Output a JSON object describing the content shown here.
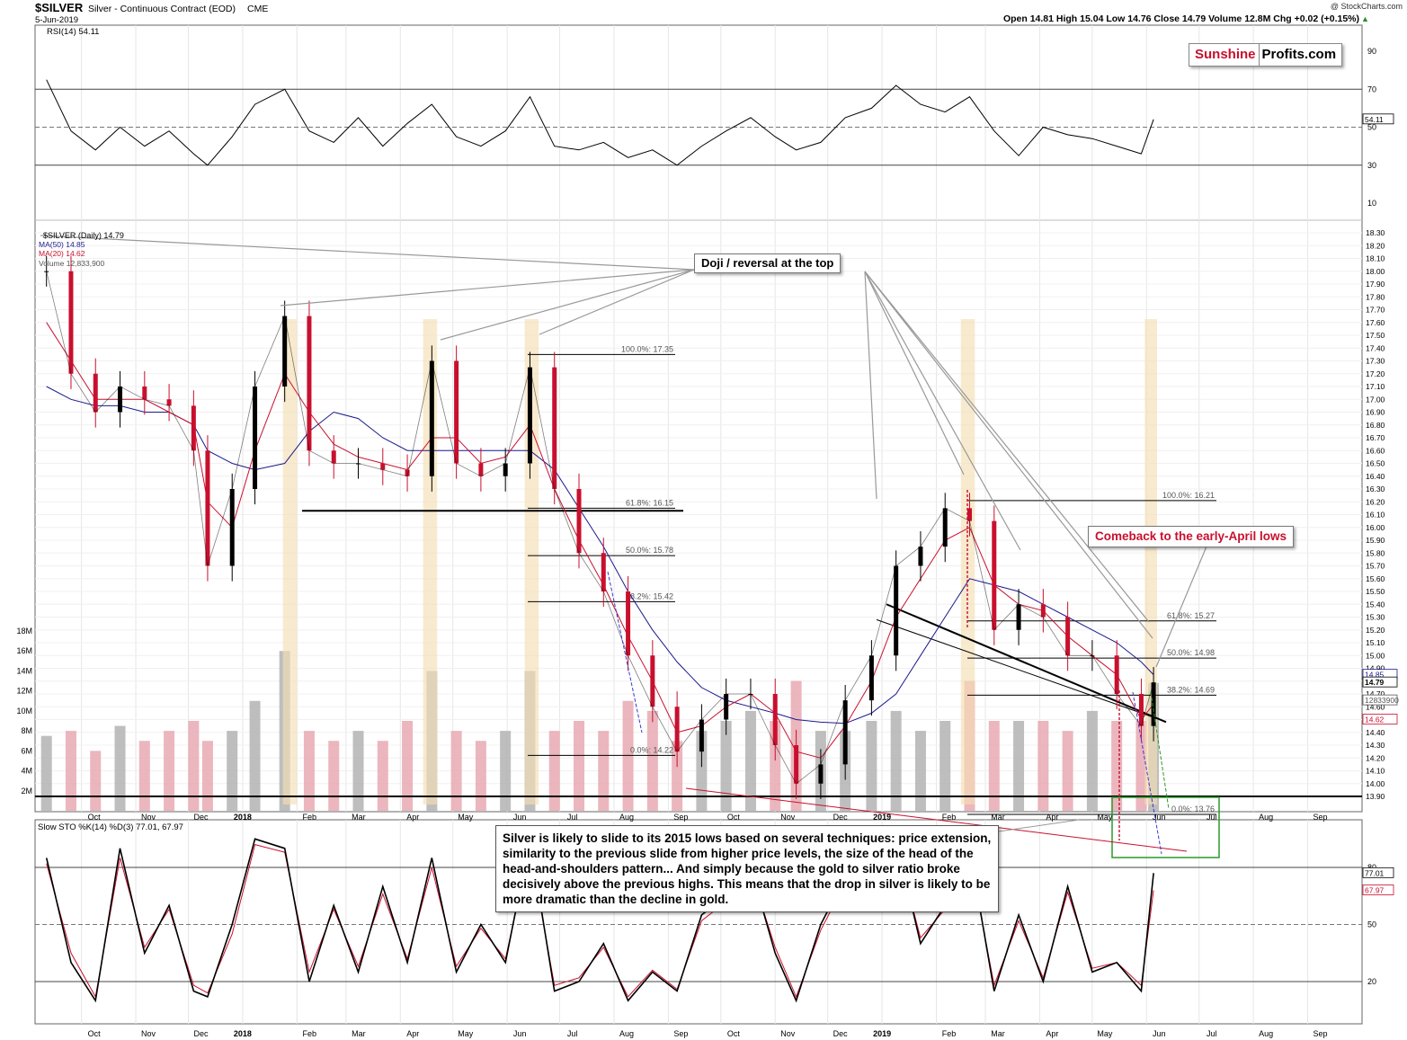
{
  "header": {
    "symbol": "$SILVER",
    "name": "Silver - Continuous Contract (EOD)",
    "exchange": "CME",
    "date": "5-Jun-2019",
    "watermark": "@ StockCharts.com",
    "ohlc": "Open 14.81  High 15.04  Low 14.76  Close 14.79  Volume 12.8M  Chg +0.02 (+0.15%)",
    "arrow": "▲"
  },
  "logo": {
    "part1": "Sunshine",
    "part2": "Profits.com"
  },
  "colors": {
    "price_up": "#000000",
    "price_down": "#c8102e",
    "ma50": "#1a1a8c",
    "ma20": "#c8102e",
    "volume_up": "#b3b3b3",
    "volume_down": "#e8a9b1",
    "highlight": "#f5deb3"
  },
  "chart_data": [
    {
      "type": "line",
      "panel": "rsi",
      "title": "RSI(14) 54.11",
      "ylim": [
        0,
        100
      ],
      "y_ticks": [
        "90",
        "70",
        "50",
        "30",
        "10"
      ],
      "reference_lines": [
        70,
        50,
        30
      ],
      "current_label": "54.11",
      "x": [
        "2017-09-11",
        "2017-09-25",
        "2017-10-09",
        "2017-10-23",
        "2017-11-06",
        "2017-11-20",
        "2017-12-04",
        "2017-12-12",
        "2017-12-26",
        "2018-01-08",
        "2018-01-25",
        "2018-02-08",
        "2018-02-22",
        "2018-03-08",
        "2018-03-22",
        "2018-04-05",
        "2018-04-19",
        "2018-05-03",
        "2018-05-17",
        "2018-05-31",
        "2018-06-14",
        "2018-06-28",
        "2018-07-12",
        "2018-07-26",
        "2018-08-09",
        "2018-08-23",
        "2018-09-06",
        "2018-09-20",
        "2018-10-04",
        "2018-10-18",
        "2018-11-01",
        "2018-11-13",
        "2018-11-27",
        "2018-12-11",
        "2018-12-26",
        "2019-01-09",
        "2019-01-23",
        "2019-02-06",
        "2019-02-20",
        "2019-03-06",
        "2019-03-20",
        "2019-04-03",
        "2019-04-17",
        "2019-05-01",
        "2019-05-15",
        "2019-05-29",
        "2019-06-05"
      ],
      "values": [
        75,
        48,
        38,
        50,
        40,
        48,
        36,
        30,
        45,
        62,
        70,
        48,
        42,
        55,
        40,
        52,
        62,
        45,
        40,
        48,
        66,
        40,
        38,
        42,
        34,
        38,
        30,
        40,
        48,
        55,
        45,
        38,
        42,
        55,
        60,
        72,
        62,
        58,
        66,
        48,
        35,
        50,
        46,
        44,
        40,
        36,
        54.11
      ]
    },
    {
      "type": "line",
      "panel": "price",
      "title": "$SILVER (Daily) 14.79",
      "ylim": [
        13.85,
        18.3
      ],
      "y_ticks": [
        "18.30",
        "18.20",
        "18.10",
        "18.00",
        "17.90",
        "17.80",
        "17.70",
        "17.60",
        "17.50",
        "17.40",
        "17.30",
        "17.20",
        "17.10",
        "17.00",
        "16.90",
        "16.80",
        "16.70",
        "16.60",
        "16.50",
        "16.40",
        "16.30",
        "16.20",
        "16.10",
        "16.00",
        "15.90",
        "15.80",
        "15.70",
        "15.60",
        "15.50",
        "15.40",
        "15.30",
        "15.20",
        "15.10",
        "15.00",
        "14.90",
        "14.80",
        "14.70",
        "14.60",
        "14.50",
        "14.40",
        "14.30",
        "14.20",
        "14.10",
        "14.00",
        "13.90"
      ],
      "legend": [
        {
          "label": "$SILVER (Daily) 14.79",
          "color": "#000000"
        },
        {
          "label": "MA(50) 14.85",
          "color": "#1a1a8c"
        },
        {
          "label": "MA(20) 14.62",
          "color": "#c8102e"
        },
        {
          "label": "Volume 12,833,900",
          "color": "#999999"
        }
      ],
      "x_labels": [
        "Oct",
        "Nov",
        "Dec",
        "2018",
        "Feb",
        "Mar",
        "Apr",
        "May",
        "Jun",
        "Jul",
        "Aug",
        "Sep",
        "Oct",
        "Nov",
        "Dec",
        "2019",
        "Feb",
        "Mar",
        "Apr",
        "May",
        "Jun",
        "Jul",
        "Aug",
        "Sep"
      ],
      "x": [
        "2017-09-11",
        "2017-09-25",
        "2017-10-09",
        "2017-10-23",
        "2017-11-06",
        "2017-11-20",
        "2017-12-04",
        "2017-12-12",
        "2017-12-26",
        "2018-01-08",
        "2018-01-25",
        "2018-02-08",
        "2018-02-22",
        "2018-03-08",
        "2018-03-22",
        "2018-04-05",
        "2018-04-19",
        "2018-05-03",
        "2018-05-17",
        "2018-05-31",
        "2018-06-14",
        "2018-06-28",
        "2018-07-12",
        "2018-07-26",
        "2018-08-09",
        "2018-08-23",
        "2018-09-06",
        "2018-09-20",
        "2018-10-04",
        "2018-10-18",
        "2018-11-01",
        "2018-11-13",
        "2018-11-27",
        "2018-12-11",
        "2018-12-26",
        "2019-01-09",
        "2019-01-23",
        "2019-02-06",
        "2019-02-20",
        "2019-03-06",
        "2019-03-20",
        "2019-04-03",
        "2019-04-17",
        "2019-05-01",
        "2019-05-15",
        "2019-05-29",
        "2019-06-05"
      ],
      "series": [
        {
          "values": [
            18.0,
            17.2,
            16.9,
            17.1,
            17.0,
            16.95,
            16.6,
            15.7,
            16.3,
            17.1,
            17.65,
            16.6,
            16.5,
            16.5,
            16.45,
            16.4,
            17.3,
            16.5,
            16.4,
            16.5,
            17.25,
            16.3,
            15.8,
            15.5,
            15.0,
            14.6,
            14.25,
            14.5,
            14.7,
            14.7,
            14.3,
            14.0,
            14.15,
            14.65,
            15.0,
            15.7,
            15.85,
            16.15,
            16.05,
            15.2,
            15.4,
            15.3,
            15.0,
            15.0,
            14.7,
            14.45,
            14.79
          ]
        },
        {
          "values": [
            17.1,
            17.0,
            16.95,
            16.95,
            16.9,
            16.9,
            16.8,
            16.6,
            16.5,
            16.45,
            16.5,
            16.75,
            16.9,
            16.85,
            16.7,
            16.6,
            16.6,
            16.6,
            16.6,
            16.6,
            16.6,
            16.45,
            16.15,
            15.85,
            15.5,
            15.2,
            14.95,
            14.75,
            14.65,
            14.6,
            14.55,
            14.5,
            14.48,
            14.47,
            14.55,
            14.7,
            15.0,
            15.3,
            15.6,
            15.55,
            15.5,
            15.4,
            15.3,
            15.2,
            15.1,
            14.95,
            14.85
          ]
        },
        {
          "values": [
            17.6,
            17.3,
            17.0,
            17.0,
            17.0,
            16.9,
            16.8,
            16.2,
            16.0,
            16.6,
            17.2,
            16.9,
            16.65,
            16.55,
            16.5,
            16.45,
            16.7,
            16.7,
            16.5,
            16.55,
            16.8,
            16.3,
            15.9,
            15.55,
            15.15,
            14.8,
            14.4,
            14.45,
            14.6,
            14.7,
            14.55,
            14.25,
            14.2,
            14.45,
            14.8,
            15.3,
            15.6,
            15.9,
            16.0,
            15.55,
            15.4,
            15.35,
            15.15,
            15.0,
            14.85,
            14.5,
            14.62
          ]
        }
      ],
      "fib_levels_2018": [
        {
          "label": "100.0%: 17.35",
          "value": 17.35
        },
        {
          "label": "61.8%: 16.15",
          "value": 16.15
        },
        {
          "label": "50.0%: 15.78",
          "value": 15.78
        },
        {
          "label": "38.2%: 15.42",
          "value": 15.42
        },
        {
          "label": "0.0%: 14.22",
          "value": 14.22
        }
      ],
      "fib_levels_2019": [
        {
          "label": "100.0%: 16.21",
          "value": 16.21
        },
        {
          "label": "61.8%: 15.27",
          "value": 15.27
        },
        {
          "label": "50.0%: 14.98",
          "value": 14.98
        },
        {
          "label": "38.2%: 14.69",
          "value": 14.69
        },
        {
          "label": "0.0%: 13.76",
          "value": 13.76
        }
      ],
      "support_level": 13.9,
      "right_labels": {
        "ma50": "14.85",
        "close": "14.79",
        "volume": "12833900",
        "ma20": "14.62"
      },
      "annotations": {
        "doji": "Doji / reversal at the top",
        "comeback": "Comeback to the early-April lows",
        "callout": "Silver is likely to slide to its 2015 lows based on several techniques: price extension, similarity to the previous slide from higher price levels, the size of the head of the head-and-shoulders pattern... And simply because the gold to silver ratio broke decisively above the previous highs. This means that the drop in silver is likely to be more dramatic than the decline in gold."
      }
    },
    {
      "type": "bar",
      "panel": "volume",
      "ylim": [
        0,
        18000000
      ],
      "y_ticks": [
        "18M",
        "16M",
        "14M",
        "12M",
        "10M",
        "8M",
        "6M",
        "4M",
        "2M"
      ],
      "values": [
        7.5,
        8,
        6,
        8.5,
        7,
        8,
        9,
        7,
        8,
        11,
        16,
        8,
        7,
        8,
        7,
        9,
        14,
        8,
        7,
        8,
        14,
        8,
        9,
        8,
        11,
        10,
        7,
        8,
        9,
        10,
        9,
        13,
        8,
        8,
        9,
        10,
        8,
        9,
        13,
        9,
        9,
        9,
        8,
        10,
        9,
        9,
        12.8
      ]
    },
    {
      "type": "line",
      "panel": "stochastic",
      "title": "Slow STO %K(14) %D(3) 77.01, 67.97",
      "ylim": [
        0,
        100
      ],
      "y_ticks": [
        "80",
        "50",
        "20"
      ],
      "reference_lines": [
        80,
        50,
        20
      ],
      "current_labels": {
        "k": "77.01",
        "d": "67.97"
      },
      "series": [
        {
          "name": "%K",
          "values": [
            85,
            30,
            10,
            90,
            35,
            60,
            15,
            12,
            50,
            95,
            90,
            20,
            60,
            25,
            70,
            30,
            85,
            25,
            50,
            30,
            95,
            15,
            20,
            40,
            10,
            25,
            15,
            55,
            65,
            80,
            35,
            10,
            50,
            75,
            85,
            95,
            40,
            60,
            90,
            15,
            55,
            20,
            70,
            25,
            30,
            15,
            77.01
          ]
        },
        {
          "name": "%D",
          "values": [
            82,
            35,
            12,
            85,
            38,
            58,
            18,
            14,
            45,
            92,
            88,
            25,
            58,
            28,
            66,
            32,
            80,
            28,
            48,
            32,
            90,
            18,
            22,
            38,
            12,
            26,
            16,
            52,
            62,
            78,
            38,
            12,
            47,
            72,
            82,
            92,
            43,
            58,
            86,
            18,
            52,
            22,
            67,
            27,
            30,
            18,
            67.97
          ]
        }
      ]
    }
  ]
}
